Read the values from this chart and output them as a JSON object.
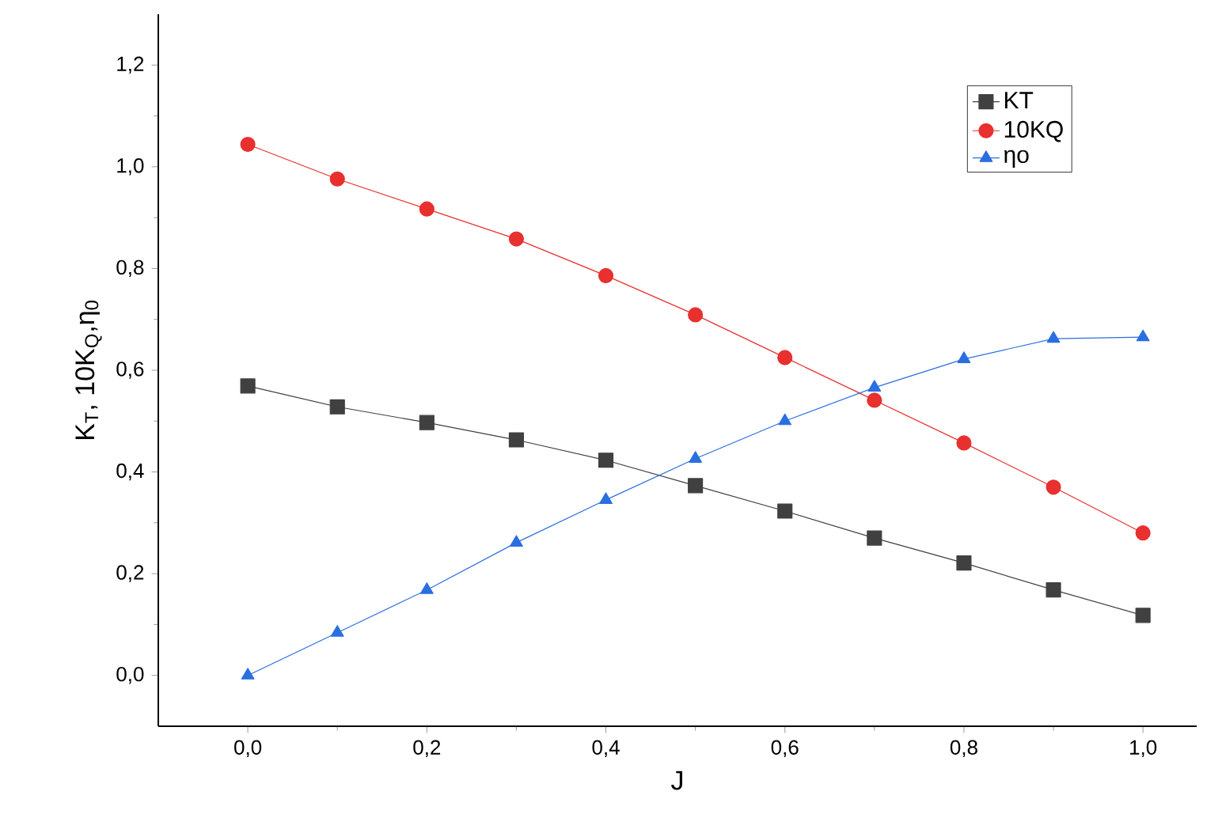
{
  "chart_data": {
    "type": "line",
    "xlabel": "J",
    "ylabel": "K$_{T}$, 10K$_{Q}$,η$_{0}$",
    "x": [
      0,
      0.1,
      0.2,
      0.3,
      0.4,
      0.5,
      0.6,
      0.7,
      0.8,
      0.9,
      1.0
    ],
    "series": [
      {
        "name": "KT",
        "color": "#404040",
        "marker": "square",
        "values": [
          0.569,
          0.528,
          0.497,
          0.463,
          0.423,
          0.373,
          0.323,
          0.27,
          0.221,
          0.168,
          0.118
        ]
      },
      {
        "name": "10KQ",
        "color": "#e8302f",
        "marker": "circle",
        "values": [
          1.044,
          0.976,
          0.917,
          0.858,
          0.786,
          0.709,
          0.625,
          0.541,
          0.457,
          0.37,
          0.28
        ]
      },
      {
        "name": "ηo",
        "color": "#2a6fe0",
        "marker": "triangle",
        "values": [
          0,
          0.084,
          0.168,
          0.261,
          0.345,
          0.426,
          0.5,
          0.566,
          0.622,
          0.662,
          0.665
        ]
      }
    ],
    "xlim": [
      -0.1,
      1.06
    ],
    "ylim": [
      -0.1,
      1.3
    ],
    "xticks": [
      {
        "value": 0,
        "label": "0,0"
      },
      {
        "value": 0.2,
        "label": "0,2"
      },
      {
        "value": 0.4,
        "label": "0,4"
      },
      {
        "value": 0.6,
        "label": "0,6"
      },
      {
        "value": 0.8,
        "label": "0,8"
      },
      {
        "value": 1.0,
        "label": "1,0"
      }
    ],
    "yticks": [
      {
        "value": 0,
        "label": "0,0"
      },
      {
        "value": 0.2,
        "label": "0,2"
      },
      {
        "value": 0.4,
        "label": "0,4"
      },
      {
        "value": 0.6,
        "label": "0,6"
      },
      {
        "value": 0.8,
        "label": "0,8"
      },
      {
        "value": 1.0,
        "label": "1,0"
      },
      {
        "value": 1.2,
        "label": "1,2"
      }
    ],
    "legend": "top right",
    "grid": false,
    "line_style": "solid"
  }
}
